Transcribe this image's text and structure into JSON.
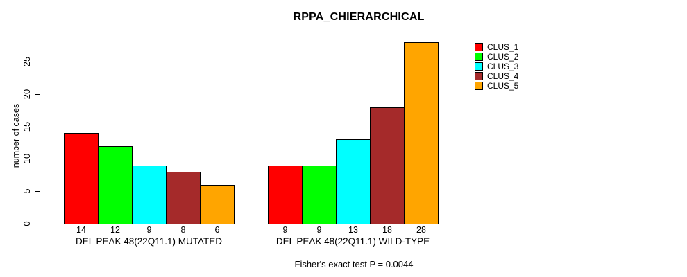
{
  "chart_data": {
    "type": "bar",
    "title": "RPPA_CHIERARCHICAL",
    "ylabel": "number of cases",
    "xlabel": "",
    "ylim": [
      0,
      25
    ],
    "yticks": [
      0,
      5,
      10,
      15,
      20,
      25
    ],
    "grid": false,
    "legend_position": "right",
    "bar_borders": "#000000",
    "background": "#FFFFFF",
    "series": [
      {
        "name": "CLUS_1",
        "color": "#FF0000"
      },
      {
        "name": "CLUS_2",
        "color": "#00FF00"
      },
      {
        "name": "CLUS_3",
        "color": "#00FFFF"
      },
      {
        "name": "CLUS_4",
        "color": "#A52A2A"
      },
      {
        "name": "CLUS_5",
        "color": "#FFA500"
      }
    ],
    "groups": [
      {
        "label": "DEL PEAK 48(22Q11.1) MUTATED",
        "values": [
          14,
          12,
          9,
          8,
          6
        ]
      },
      {
        "label": "DEL PEAK 48(22Q11.1) WILD-TYPE",
        "values": [
          9,
          9,
          13,
          18,
          28
        ]
      }
    ],
    "footnote": "Fisher's exact test P = 0.0044"
  }
}
